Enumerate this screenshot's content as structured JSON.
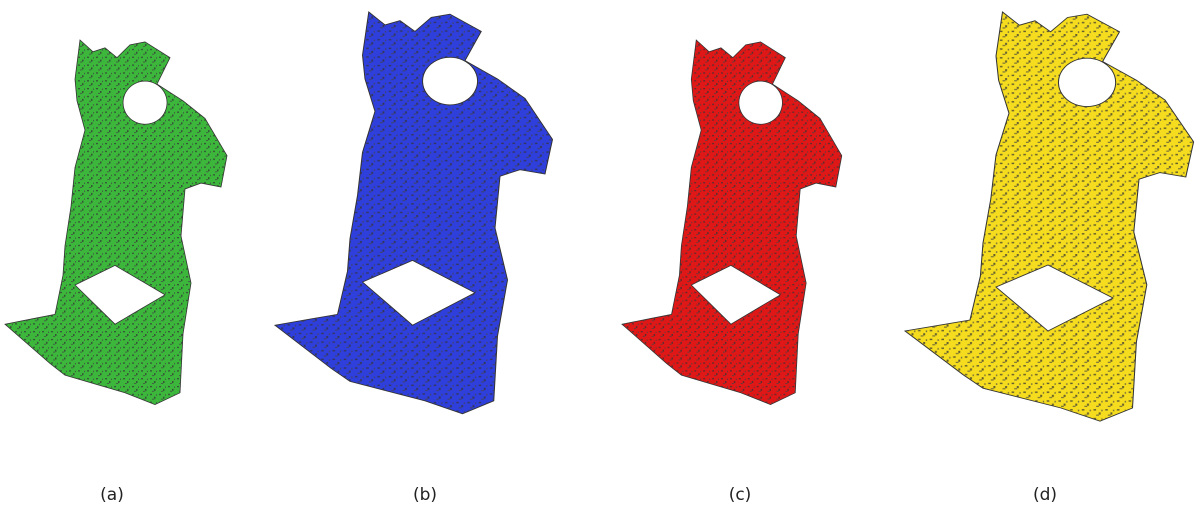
{
  "panels": [
    {
      "label": "(a)",
      "color": "#3cb73c"
    },
    {
      "label": "(b)",
      "color": "#2f3fdc"
    },
    {
      "label": "(c)",
      "color": "#df1717"
    },
    {
      "label": "(d)",
      "color": "#f5dc1e"
    }
  ]
}
